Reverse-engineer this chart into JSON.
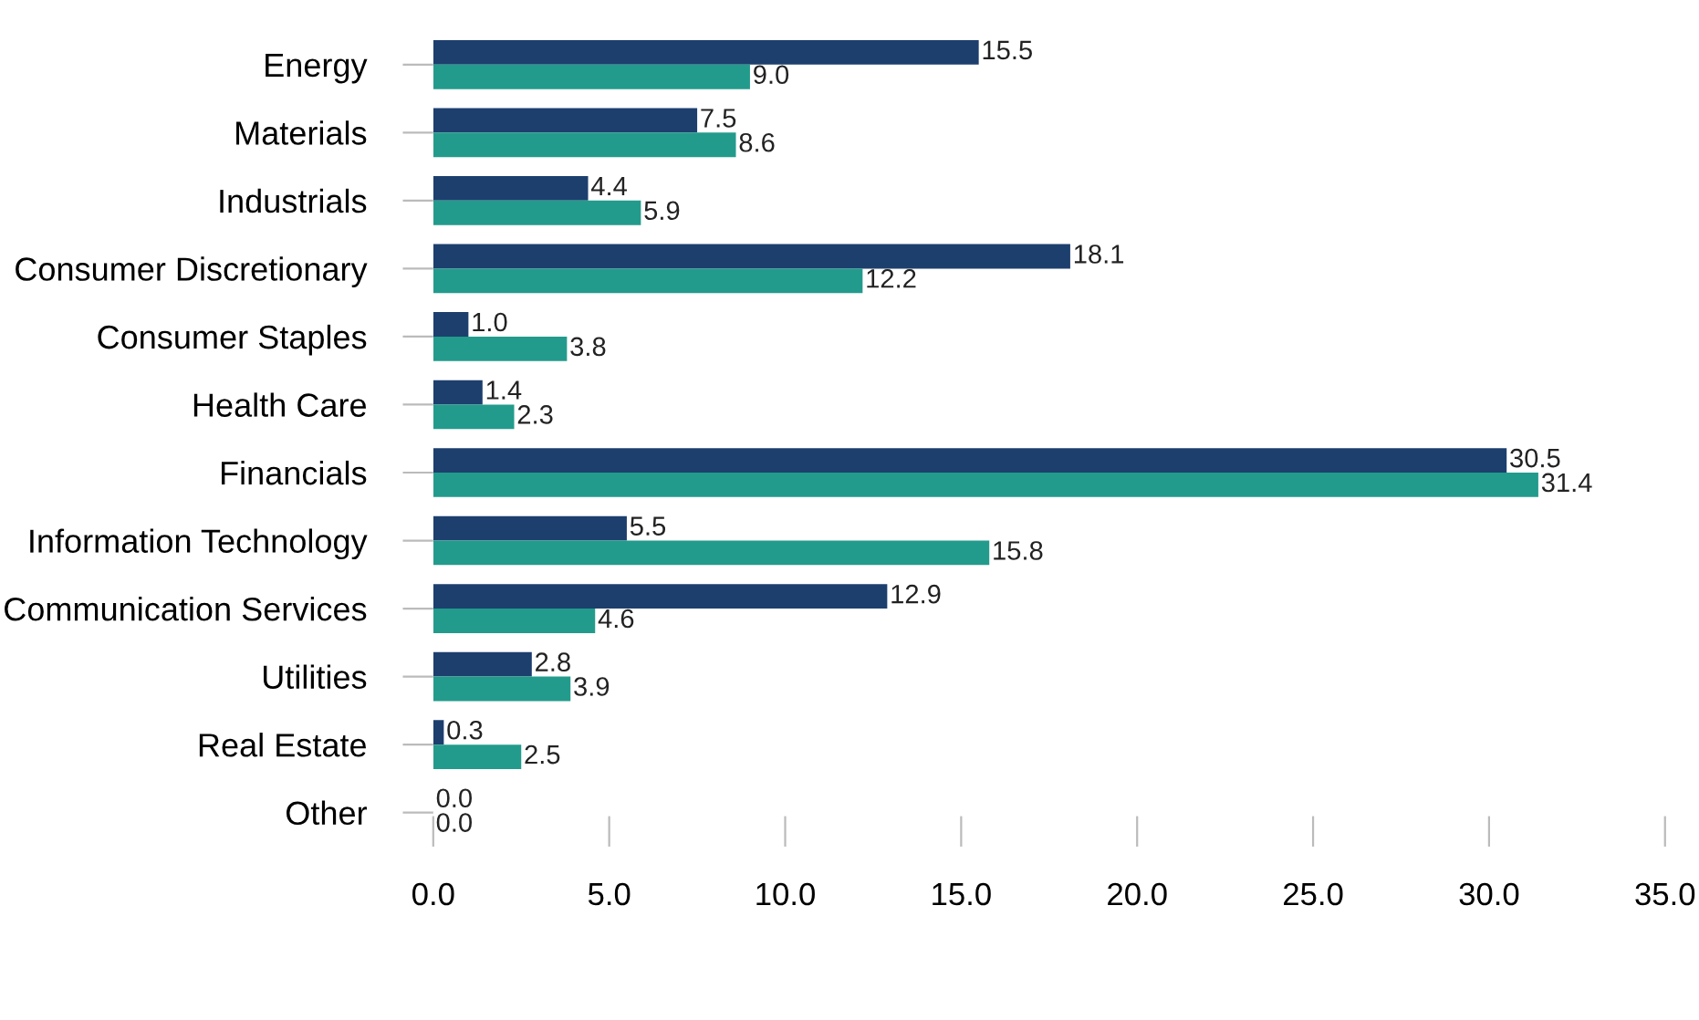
{
  "chart_data": {
    "type": "bar",
    "orientation": "horizontal",
    "categories": [
      "Energy",
      "Materials",
      "Industrials",
      "Consumer Discretionary",
      "Consumer Staples",
      "Health Care",
      "Financials",
      "Information Technology",
      "Communication Services",
      "Utilities",
      "Real Estate",
      "Other"
    ],
    "series": [
      {
        "color": "#1d3f6e",
        "values": [
          15.5,
          7.5,
          4.4,
          18.1,
          1.0,
          1.4,
          30.5,
          5.5,
          12.9,
          2.8,
          0.3,
          0.0
        ],
        "value_labels": [
          "15.5",
          "7.5",
          "4.4",
          "18.1",
          "1.0",
          "1.4",
          "30.5",
          "5.5",
          "12.9",
          "2.8",
          "0.3",
          "0.0"
        ]
      },
      {
        "color": "#239b8c",
        "values": [
          9.0,
          8.6,
          5.9,
          12.2,
          3.8,
          2.3,
          31.4,
          15.8,
          4.6,
          3.9,
          2.5,
          0.0
        ],
        "value_labels": [
          "9.0",
          "8.6",
          "5.9",
          "12.2",
          "3.8",
          "2.3",
          "31.4",
          "15.8",
          "4.6",
          "3.9",
          "2.5",
          "0.0"
        ]
      }
    ],
    "xlim": [
      0,
      35
    ],
    "xticks": [
      {
        "value": 0,
        "label": "0.0"
      },
      {
        "value": 5,
        "label": "5.0"
      },
      {
        "value": 10,
        "label": "10.0"
      },
      {
        "value": 15,
        "label": "15.0"
      },
      {
        "value": 20,
        "label": "20.0"
      },
      {
        "value": 25,
        "label": "25.0"
      },
      {
        "value": 30,
        "label": "30.0"
      },
      {
        "value": 35,
        "label": "35.0"
      }
    ],
    "grid": false
  }
}
